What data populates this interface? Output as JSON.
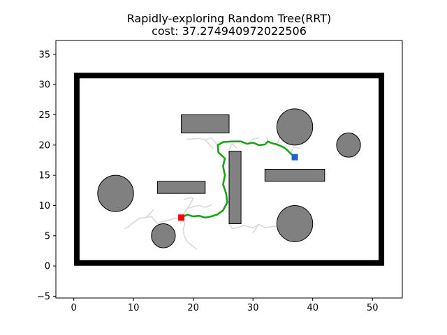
{
  "chart_data": {
    "type": "scatter",
    "title": "Rapidly-exploring Random Tree(RRT)",
    "subtitle": "cost: 37.274940972022506",
    "xlabel": "",
    "ylabel": "",
    "xlim": [
      -3,
      55
    ],
    "ylim": [
      -5.3,
      37.3
    ],
    "xticks": [
      0,
      10,
      20,
      30,
      40,
      50
    ],
    "yticks": [
      -5,
      0,
      5,
      10,
      15,
      20,
      25,
      30,
      35
    ],
    "grid": false,
    "colors": {
      "boundary": "#000000",
      "obstacle_fill": "#808080",
      "obstacle_edge": "#000000",
      "path": "#1aa31a",
      "tree": "#d9d9d9",
      "start": "#ff0000",
      "goal": "#1e5fd6"
    },
    "boundary": {
      "x0": 0.5,
      "y0": 0.5,
      "x1": 51.5,
      "y1": 31.5
    },
    "rectangles": [
      {
        "x": 18,
        "y": 22,
        "w": 8,
        "h": 3
      },
      {
        "x": 26,
        "y": 7,
        "w": 2,
        "h": 12
      },
      {
        "x": 32,
        "y": 14,
        "w": 10,
        "h": 2
      },
      {
        "x": 14,
        "y": 12,
        "w": 8,
        "h": 2
      }
    ],
    "circles": [
      {
        "cx": 7,
        "cy": 12,
        "r": 3
      },
      {
        "cx": 15,
        "cy": 5,
        "r": 2
      },
      {
        "cx": 37,
        "cy": 23,
        "r": 3
      },
      {
        "cx": 46,
        "cy": 20,
        "r": 2
      },
      {
        "cx": 37,
        "cy": 7,
        "r": 3
      }
    ],
    "start": {
      "x": 18,
      "y": 8
    },
    "goal": {
      "x": 37,
      "y": 18
    },
    "path": [
      [
        18,
        8
      ],
      [
        19,
        8.5
      ],
      [
        20,
        8.2
      ],
      [
        21,
        8.3
      ],
      [
        22,
        8.0
      ],
      [
        23,
        8.2
      ],
      [
        24,
        8.5
      ],
      [
        25,
        9.2
      ],
      [
        25.7,
        10.5
      ],
      [
        25.5,
        12
      ],
      [
        25.0,
        13.5
      ],
      [
        25.3,
        15.0
      ],
      [
        25.0,
        16.5
      ],
      [
        25.3,
        17.8
      ],
      [
        24.2,
        18.8
      ],
      [
        24.1,
        20.0
      ],
      [
        25.0,
        20.5
      ],
      [
        26.5,
        20.6
      ],
      [
        28,
        20.6
      ],
      [
        29,
        20.2
      ],
      [
        30,
        20.4
      ],
      [
        31,
        20.0
      ],
      [
        32,
        20.1
      ],
      [
        32.5,
        20.6
      ],
      [
        33.2,
        20.3
      ],
      [
        34,
        20.1
      ],
      [
        35,
        19.7
      ],
      [
        35.7,
        19.2
      ],
      [
        36.3,
        18.6
      ],
      [
        37,
        18
      ]
    ],
    "tree": [
      [
        [
          14,
          7
        ],
        [
          15,
          7.4
        ],
        [
          16,
          7.6
        ],
        [
          17,
          7.9
        ],
        [
          18,
          8
        ]
      ],
      [
        [
          18,
          8
        ],
        [
          19,
          9.5
        ],
        [
          20,
          9.8
        ],
        [
          21,
          10
        ],
        [
          22,
          9.7
        ],
        [
          23,
          10.1
        ]
      ],
      [
        [
          12,
          8
        ],
        [
          13,
          8.2
        ],
        [
          14,
          7
        ]
      ],
      [
        [
          12,
          8
        ],
        [
          11,
          7.9
        ],
        [
          10,
          7.2
        ],
        [
          9,
          6.4
        ],
        [
          8.6,
          6.2
        ]
      ],
      [
        [
          12,
          8
        ],
        [
          12.7,
          8.6
        ],
        [
          13.3,
          9.3
        ]
      ],
      [
        [
          18,
          8
        ],
        [
          18.6,
          7
        ],
        [
          18.3,
          6
        ],
        [
          18.5,
          5
        ],
        [
          19,
          4
        ],
        [
          20.5,
          2.8
        ]
      ],
      [
        [
          19,
          9.5
        ],
        [
          19.5,
          10.2
        ],
        [
          20,
          11.2
        ]
      ],
      [
        [
          18.5,
          11
        ],
        [
          19.5,
          11.3
        ],
        [
          20,
          11.2
        ]
      ],
      [
        [
          25.7,
          10.5
        ],
        [
          26.5,
          10.7
        ],
        [
          28,
          11
        ]
      ],
      [
        [
          26,
          7
        ],
        [
          26.5,
          6.2
        ],
        [
          27.3,
          6.3
        ],
        [
          28.5,
          6.7
        ],
        [
          30,
          6.3
        ],
        [
          31,
          6.9
        ],
        [
          32,
          6.3
        ],
        [
          33,
          6.5
        ],
        [
          34,
          6.6
        ],
        [
          35,
          6.1
        ]
      ],
      [
        [
          31,
          6.9
        ],
        [
          30,
          5.5
        ]
      ],
      [
        [
          19,
          21
        ],
        [
          20,
          21
        ],
        [
          21,
          21.1
        ],
        [
          22,
          20.9
        ],
        [
          23,
          21.2
        ],
        [
          24.1,
          20.0
        ]
      ],
      [
        [
          22,
          20.9
        ],
        [
          22.6,
          20.2
        ],
        [
          23.3,
          19.5
        ]
      ],
      [
        [
          26,
          19.3
        ],
        [
          26.5,
          20.2
        ],
        [
          27.3,
          19.5
        ]
      ],
      [
        [
          29,
          20.2
        ],
        [
          30,
          21
        ],
        [
          31,
          21.2
        ]
      ],
      [
        [
          32.3,
          21.3
        ],
        [
          32.5,
          20.6
        ]
      ],
      [
        [
          34,
          20.1
        ],
        [
          34.5,
          21.3
        ]
      ],
      [
        [
          36.3,
          18.6
        ],
        [
          36.8,
          19.7
        ],
        [
          37.8,
          19.4
        ]
      ]
    ]
  }
}
